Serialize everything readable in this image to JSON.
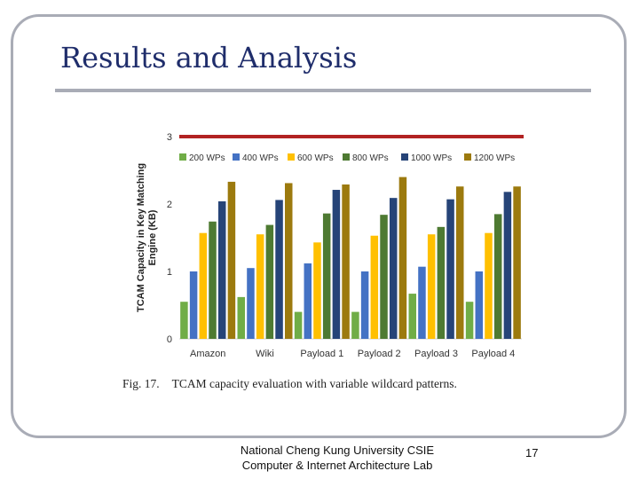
{
  "slide": {
    "title": "Results and Analysis",
    "caption_fig": "Fig. 17.",
    "caption_text": "TCAM capacity evaluation with variable wildcard patterns.",
    "footer_line1": "National Cheng Kung University CSIE",
    "footer_line2": "Computer & Internet Architecture Lab",
    "page_number": "17"
  },
  "colors": {
    "title": "#1f2d6b",
    "frame": "#a9acb6",
    "threshold": "#b22222"
  },
  "chart_data": {
    "type": "bar",
    "categories": [
      "Amazon",
      "Wiki",
      "Payload 1",
      "Payload 2",
      "Payload 3",
      "Payload 4"
    ],
    "ylabel": "TCAM Capacity in Key Matching Engine (KB)",
    "ylim": [
      0,
      3
    ],
    "yticks": [
      0,
      1,
      2,
      3
    ],
    "grid": false,
    "legend_position": "top",
    "threshold_line": 3,
    "series": [
      {
        "name": "200 WPs",
        "color": "#70ad47",
        "values": [
          0.55,
          0.62,
          0.4,
          0.4,
          0.67,
          0.55
        ]
      },
      {
        "name": "400 WPs",
        "color": "#4472c4",
        "values": [
          1.0,
          1.05,
          1.12,
          1.0,
          1.07,
          1.0
        ]
      },
      {
        "name": "600 WPs",
        "color": "#ffc000",
        "values": [
          1.57,
          1.55,
          1.43,
          1.53,
          1.55,
          1.57
        ]
      },
      {
        "name": "800 WPs",
        "color": "#4e7a32",
        "values": [
          1.74,
          1.69,
          1.86,
          1.84,
          1.66,
          1.85
        ]
      },
      {
        "name": "1000 WPs",
        "color": "#264478",
        "values": [
          2.04,
          2.06,
          2.21,
          2.09,
          2.07,
          2.18
        ]
      },
      {
        "name": "1200 WPs",
        "color": "#9c7a0e",
        "values": [
          2.33,
          2.31,
          2.29,
          2.4,
          2.26,
          2.26
        ]
      }
    ]
  }
}
